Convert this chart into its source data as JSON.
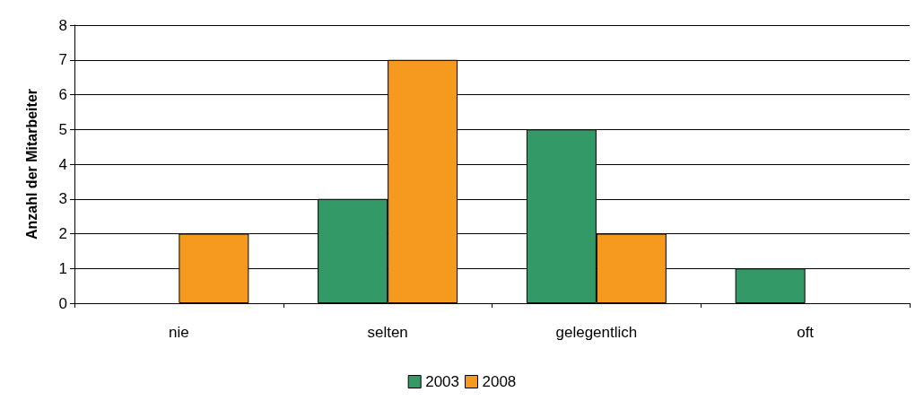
{
  "chart_data": {
    "type": "bar",
    "ylabel": "Anzahl der Mitarbeiter",
    "categories": [
      "nie",
      "selten",
      "gelegentlich",
      "oft"
    ],
    "series": [
      {
        "name": "2003",
        "color": "#339966",
        "values": [
          0,
          3,
          5,
          1
        ]
      },
      {
        "name": "2008",
        "color": "#f5991f",
        "values": [
          2,
          7,
          2,
          0
        ]
      }
    ],
    "ylim": [
      0,
      8
    ],
    "yticks": [
      0,
      1,
      2,
      3,
      4,
      5,
      6,
      7,
      8
    ],
    "grid": "y",
    "legend": "bottom"
  }
}
